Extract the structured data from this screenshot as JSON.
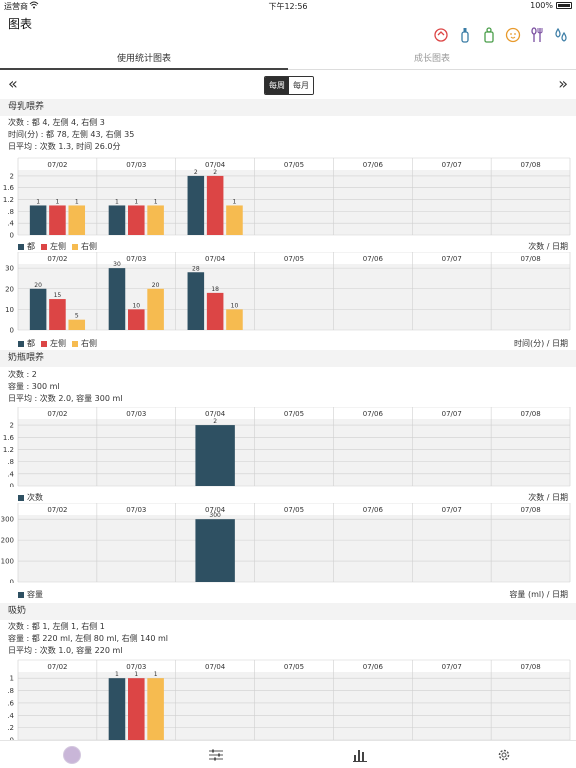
{
  "status": {
    "carrier": "运营商",
    "time": "下午12:56",
    "battery": "100%"
  },
  "header": {
    "title": "图表"
  },
  "top_icons": [
    "care-icon",
    "bottle-icon",
    "pump-icon",
    "baby-face-icon",
    "utensils-icon",
    "drops-icon"
  ],
  "tabs": {
    "active": "使用统计图表",
    "inactive": "成长图表"
  },
  "nav": {
    "prev": "«",
    "next": "»",
    "weekly": "每周",
    "monthly": "每月"
  },
  "colors": {
    "all": "#2e5062",
    "left": "#dc4545",
    "right": "#f6bb50",
    "grid": "#cfcfcf",
    "plot_bg": "#f2f2f2"
  },
  "dates": [
    "07/02",
    "07/03",
    "07/04",
    "07/05",
    "07/06",
    "07/07",
    "07/08"
  ],
  "breast": {
    "title": "母乳喂养",
    "line1": "次数 : 都 4, 左侧 4, 右侧 3",
    "line2": "时间(分) : 都 78, 左侧 43, 右侧 35",
    "line3": "日平均 : 次数 1.3, 时间 26.0分",
    "legend": [
      "都",
      "左侧",
      "右侧"
    ],
    "unit_count": "次数 / 日期",
    "unit_time": "时间(分) / 日期"
  },
  "bottle": {
    "title": "奶瓶喂养",
    "line1": "次数 : 2",
    "line2": "容量 : 300 ml",
    "line3": "日平均 : 次数 2.0, 容量 300 ml",
    "legend_count": "次数",
    "legend_volume": "容量",
    "unit_count": "次数 / 日期",
    "unit_volume": "容量 (ml) / 日期"
  },
  "pump": {
    "title": "吸奶",
    "line1": "次数 : 都 1, 左侧 1, 右侧 1",
    "line2": "容量 : 都 220 ml, 左侧 80 ml, 右侧 140 ml",
    "line3": "日平均 : 次数 1.0, 容量 220 ml"
  },
  "chart_data": [
    {
      "type": "bar",
      "categories": [
        "07/02",
        "07/03",
        "07/04",
        "07/05",
        "07/06",
        "07/07",
        "07/08"
      ],
      "series": [
        {
          "name": "都",
          "values": [
            1,
            1,
            2,
            0,
            0,
            0,
            0
          ]
        },
        {
          "name": "左侧",
          "values": [
            1,
            1,
            2,
            0,
            0,
            0,
            0
          ]
        },
        {
          "name": "右侧",
          "values": [
            1,
            1,
            1,
            0,
            0,
            0,
            0
          ]
        }
      ],
      "ylim": [
        0,
        2.2
      ],
      "yticks": [
        "0",
        ".4",
        ".8",
        "1.2",
        "1.6",
        "2"
      ],
      "ylabel": "次数 / 日期"
    },
    {
      "type": "bar",
      "categories": [
        "07/02",
        "07/03",
        "07/04",
        "07/05",
        "07/06",
        "07/07",
        "07/08"
      ],
      "series": [
        {
          "name": "都",
          "values": [
            20,
            30,
            28,
            0,
            0,
            0,
            0
          ]
        },
        {
          "name": "左侧",
          "values": [
            15,
            10,
            18,
            0,
            0,
            0,
            0
          ]
        },
        {
          "name": "右侧",
          "values": [
            5,
            20,
            10,
            0,
            0,
            0,
            0
          ]
        }
      ],
      "ylim": [
        0,
        32
      ],
      "yticks": [
        "0",
        "10",
        "20",
        "30"
      ],
      "ylabel": "时间(分) / 日期"
    },
    {
      "type": "bar",
      "categories": [
        "07/02",
        "07/03",
        "07/04",
        "07/05",
        "07/06",
        "07/07",
        "07/08"
      ],
      "series": [
        {
          "name": "次数",
          "values": [
            0,
            0,
            2,
            0,
            0,
            0,
            0
          ]
        }
      ],
      "ylim": [
        0,
        2.2
      ],
      "yticks": [
        "0",
        ".4",
        ".8",
        "1.2",
        "1.6",
        "2"
      ],
      "ylabel": "次数 / 日期"
    },
    {
      "type": "bar",
      "categories": [
        "07/02",
        "07/03",
        "07/04",
        "07/05",
        "07/06",
        "07/07",
        "07/08"
      ],
      "series": [
        {
          "name": "容量",
          "values": [
            0,
            0,
            300,
            0,
            0,
            0,
            0
          ]
        }
      ],
      "ylim": [
        0,
        320
      ],
      "yticks": [
        "0",
        "100",
        "200",
        "300"
      ],
      "ylabel": "容量 (ml) / 日期"
    },
    {
      "type": "bar",
      "categories": [
        "07/02",
        "07/03",
        "07/04",
        "07/05",
        "07/06",
        "07/07",
        "07/08"
      ],
      "series": [
        {
          "name": "都",
          "values": [
            0,
            1,
            0,
            0,
            0,
            0,
            0
          ]
        },
        {
          "name": "左侧",
          "values": [
            0,
            1,
            0,
            0,
            0,
            0,
            0
          ]
        },
        {
          "name": "右侧",
          "values": [
            0,
            1,
            0,
            0,
            0,
            0,
            0
          ]
        }
      ],
      "ylim": [
        0,
        1.1
      ],
      "yticks": [
        "0",
        ".2",
        ".4",
        ".6",
        ".8",
        "1"
      ]
    }
  ]
}
